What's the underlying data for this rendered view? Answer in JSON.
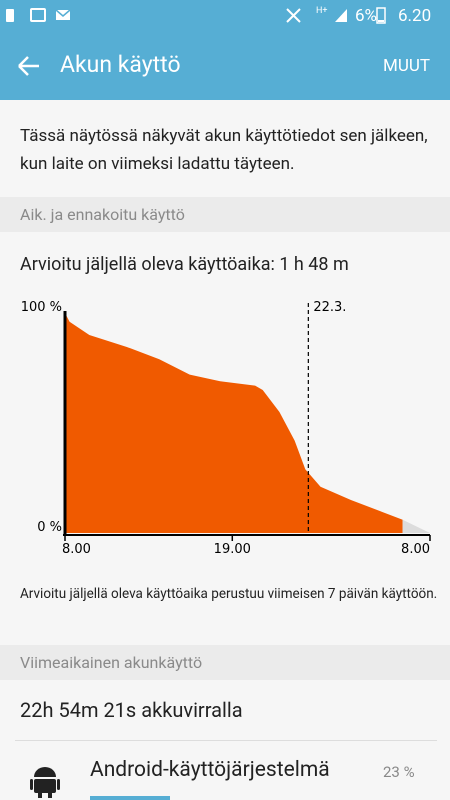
{
  "status_bar": {
    "network": "H+",
    "battery": "6%",
    "time": "6.20"
  },
  "app_bar": {
    "title": "Akun käyttö",
    "action": "MUUT"
  },
  "description": "Tässä näytössä näkyvät akun käyttötiedot sen jälkeen, kun laite on viimeksi ladattu täyteen.",
  "section_1": {
    "header": "Aik. ja ennakoitu käyttö",
    "estimate": "Arvioitu jäljellä oleva käyttöaika: 1 h 48 m",
    "chart_data": {
      "type": "area",
      "series": [
        {
          "color": "#f05a00",
          "x": [
            0,
            0.3,
            1.6,
            4.3,
            6.2,
            8.2,
            10.2,
            12.5,
            13,
            14.1,
            15.1,
            15.8,
            16.8,
            18.8,
            20.7,
            22.2
          ],
          "values": [
            100,
            96,
            90,
            84,
            79,
            72,
            69,
            67,
            65,
            55,
            42,
            29,
            21,
            15,
            10,
            6
          ]
        },
        {
          "color": "#dcdcdc",
          "x": [
            22.2,
            24
          ],
          "values": [
            6,
            0
          ]
        }
      ],
      "xlim": [
        0,
        24
      ],
      "xticks": [
        {
          "value": 0,
          "label": "8.00"
        },
        {
          "value": 11,
          "label": "19.00"
        },
        {
          "value": 24,
          "label": "8.00"
        }
      ],
      "ylim": [
        0,
        100
      ],
      "yticks": [
        {
          "value": 0,
          "label": "0 %"
        },
        {
          "value": 100,
          "label": "100 %"
        }
      ],
      "marker": {
        "value": 16,
        "label": "22.3."
      }
    },
    "footnote": "Arvioitu jäljellä oleva käyttöaika perustuu viimeisen 7 päivän käyttöön."
  },
  "section_2": {
    "header": "Viimeaikainen akunkäyttö",
    "summary": "22h 54m 21s akkuvirralla",
    "items": [
      {
        "name": "Android-käyttöjärjestelmä",
        "percent": "23 %"
      }
    ]
  }
}
